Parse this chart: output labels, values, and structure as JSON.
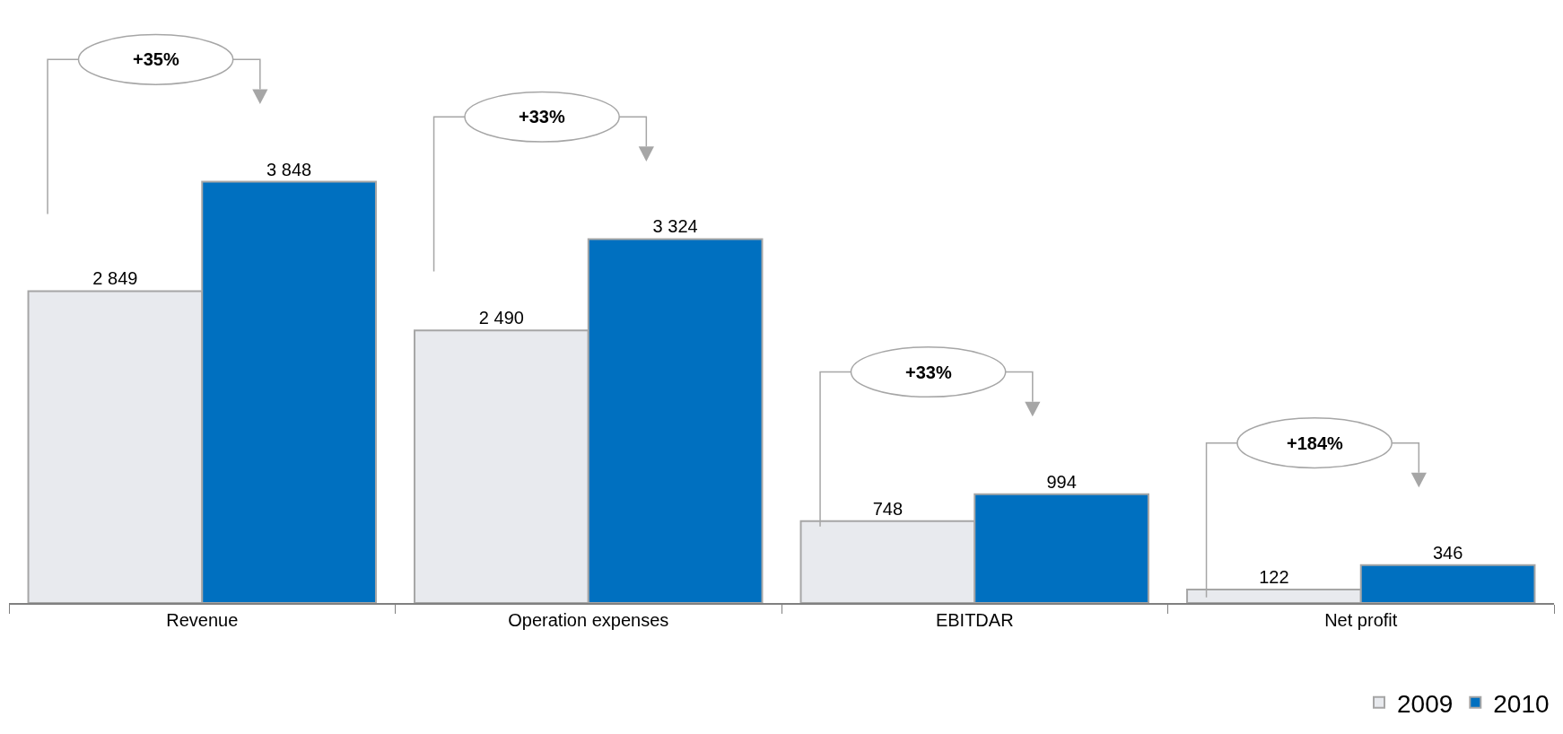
{
  "chart_data": {
    "type": "bar",
    "categories": [
      "Revenue",
      "Operation expenses",
      "EBITDAR",
      "Net profit"
    ],
    "series": [
      {
        "name": "2009",
        "color": "#e8eaee",
        "values": [
          2849,
          2490,
          748,
          122
        ],
        "value_labels": [
          "2 849",
          "2 490",
          "748",
          "122"
        ]
      },
      {
        "name": "2010",
        "color": "#0070c0",
        "values": [
          3848,
          3324,
          994,
          346
        ],
        "value_labels": [
          "3 848",
          "3 324",
          "994",
          "346"
        ]
      }
    ],
    "tick_labels": "x",
    "legend": "bottom right",
    "annotations": [
      "+35%",
      "+33%",
      "+33%",
      "+184%"
    ]
  }
}
